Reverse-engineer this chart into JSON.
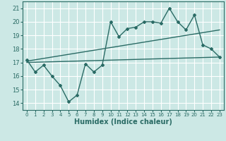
{
  "xlabel": "Humidex (Indice chaleur)",
  "xlim": [
    -0.5,
    23.5
  ],
  "ylim": [
    13.5,
    21.5
  ],
  "xticks": [
    0,
    1,
    2,
    3,
    4,
    5,
    6,
    7,
    8,
    9,
    10,
    11,
    12,
    13,
    14,
    15,
    16,
    17,
    18,
    19,
    20,
    21,
    22,
    23
  ],
  "yticks": [
    14,
    15,
    16,
    17,
    18,
    19,
    20,
    21
  ],
  "bg_color": "#cce8e5",
  "grid_color": "#ffffff",
  "line_color": "#2a6b65",
  "line1_x": [
    0,
    1,
    2,
    3,
    4,
    5,
    6,
    7,
    8,
    9,
    10,
    11,
    12,
    13,
    14,
    15,
    16,
    17,
    18,
    19,
    20,
    21,
    22,
    23
  ],
  "line1_y": [
    17.2,
    16.3,
    16.8,
    16.0,
    15.3,
    14.1,
    14.6,
    16.9,
    16.3,
    16.8,
    20.0,
    18.9,
    19.5,
    19.6,
    20.0,
    20.0,
    19.9,
    21.0,
    20.0,
    19.4,
    20.5,
    18.3,
    18.0,
    17.4
  ],
  "line2_x": [
    0,
    23
  ],
  "line2_y": [
    17.0,
    17.4
  ],
  "line3_x": [
    0,
    23
  ],
  "line3_y": [
    17.1,
    19.4
  ]
}
